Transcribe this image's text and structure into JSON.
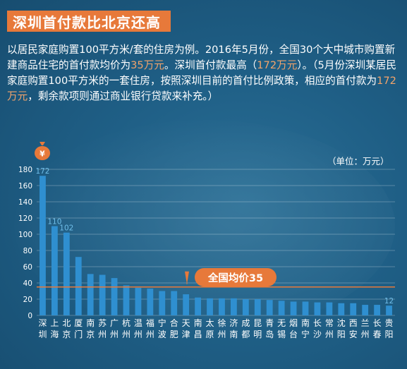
{
  "header": {
    "title": "深圳首付款比北京还高"
  },
  "description": {
    "part1": "以居民家庭购置100平方米/套的住房为例。2016年5月份，全国30个大中城市购置新建商品住宅的首付款均价为",
    "hl1": "35万元",
    "part2": "。深圳首付款最高（",
    "hl2": "172万元",
    "part3": "）。（5月份深圳某居民家庭购置100平方米的一套住房，按照深圳目前的首付比例政策，相应的首付款为",
    "hl3": "172万元",
    "part4": "，剩余款项则通过商业银行贷款来补充。）"
  },
  "unit_label": "（单位：万元）",
  "avg_callout": "全国均价35",
  "coin_icon": "money-bag-icon",
  "colors": {
    "accent": "#e7793a",
    "bar": "#2f8fd0",
    "highlight_text": "#f3a46b",
    "avg_line": "#e7793a"
  },
  "chart_data": {
    "type": "bar",
    "title": "",
    "xlabel": "",
    "ylabel": "",
    "ylim": [
      0,
      180
    ],
    "yticks": [
      0,
      20,
      40,
      60,
      80,
      100,
      120,
      140,
      160,
      180
    ],
    "grid": true,
    "average": 35,
    "categories": [
      "深圳",
      "上海",
      "北京",
      "厦门",
      "南京",
      "苏州",
      "广州",
      "杭州",
      "温州",
      "福州",
      "宁波",
      "合肥",
      "天津",
      "南昌",
      "太原",
      "徐州",
      "济南",
      "成都",
      "昆明",
      "青岛",
      "无锡",
      "烟台",
      "南宁",
      "长沙",
      "常州",
      "沈阳",
      "西安",
      "兰州",
      "长春",
      "贵阳"
    ],
    "values": [
      172,
      110,
      102,
      72,
      51,
      50,
      46,
      37,
      34,
      33,
      30,
      30,
      26,
      22,
      21,
      21,
      21,
      20,
      20,
      19,
      18,
      17,
      17,
      16,
      16,
      15,
      15,
      13,
      13,
      12
    ],
    "data_labels": {
      "0": "172",
      "1": "110",
      "2": "102",
      "29": "12"
    }
  }
}
